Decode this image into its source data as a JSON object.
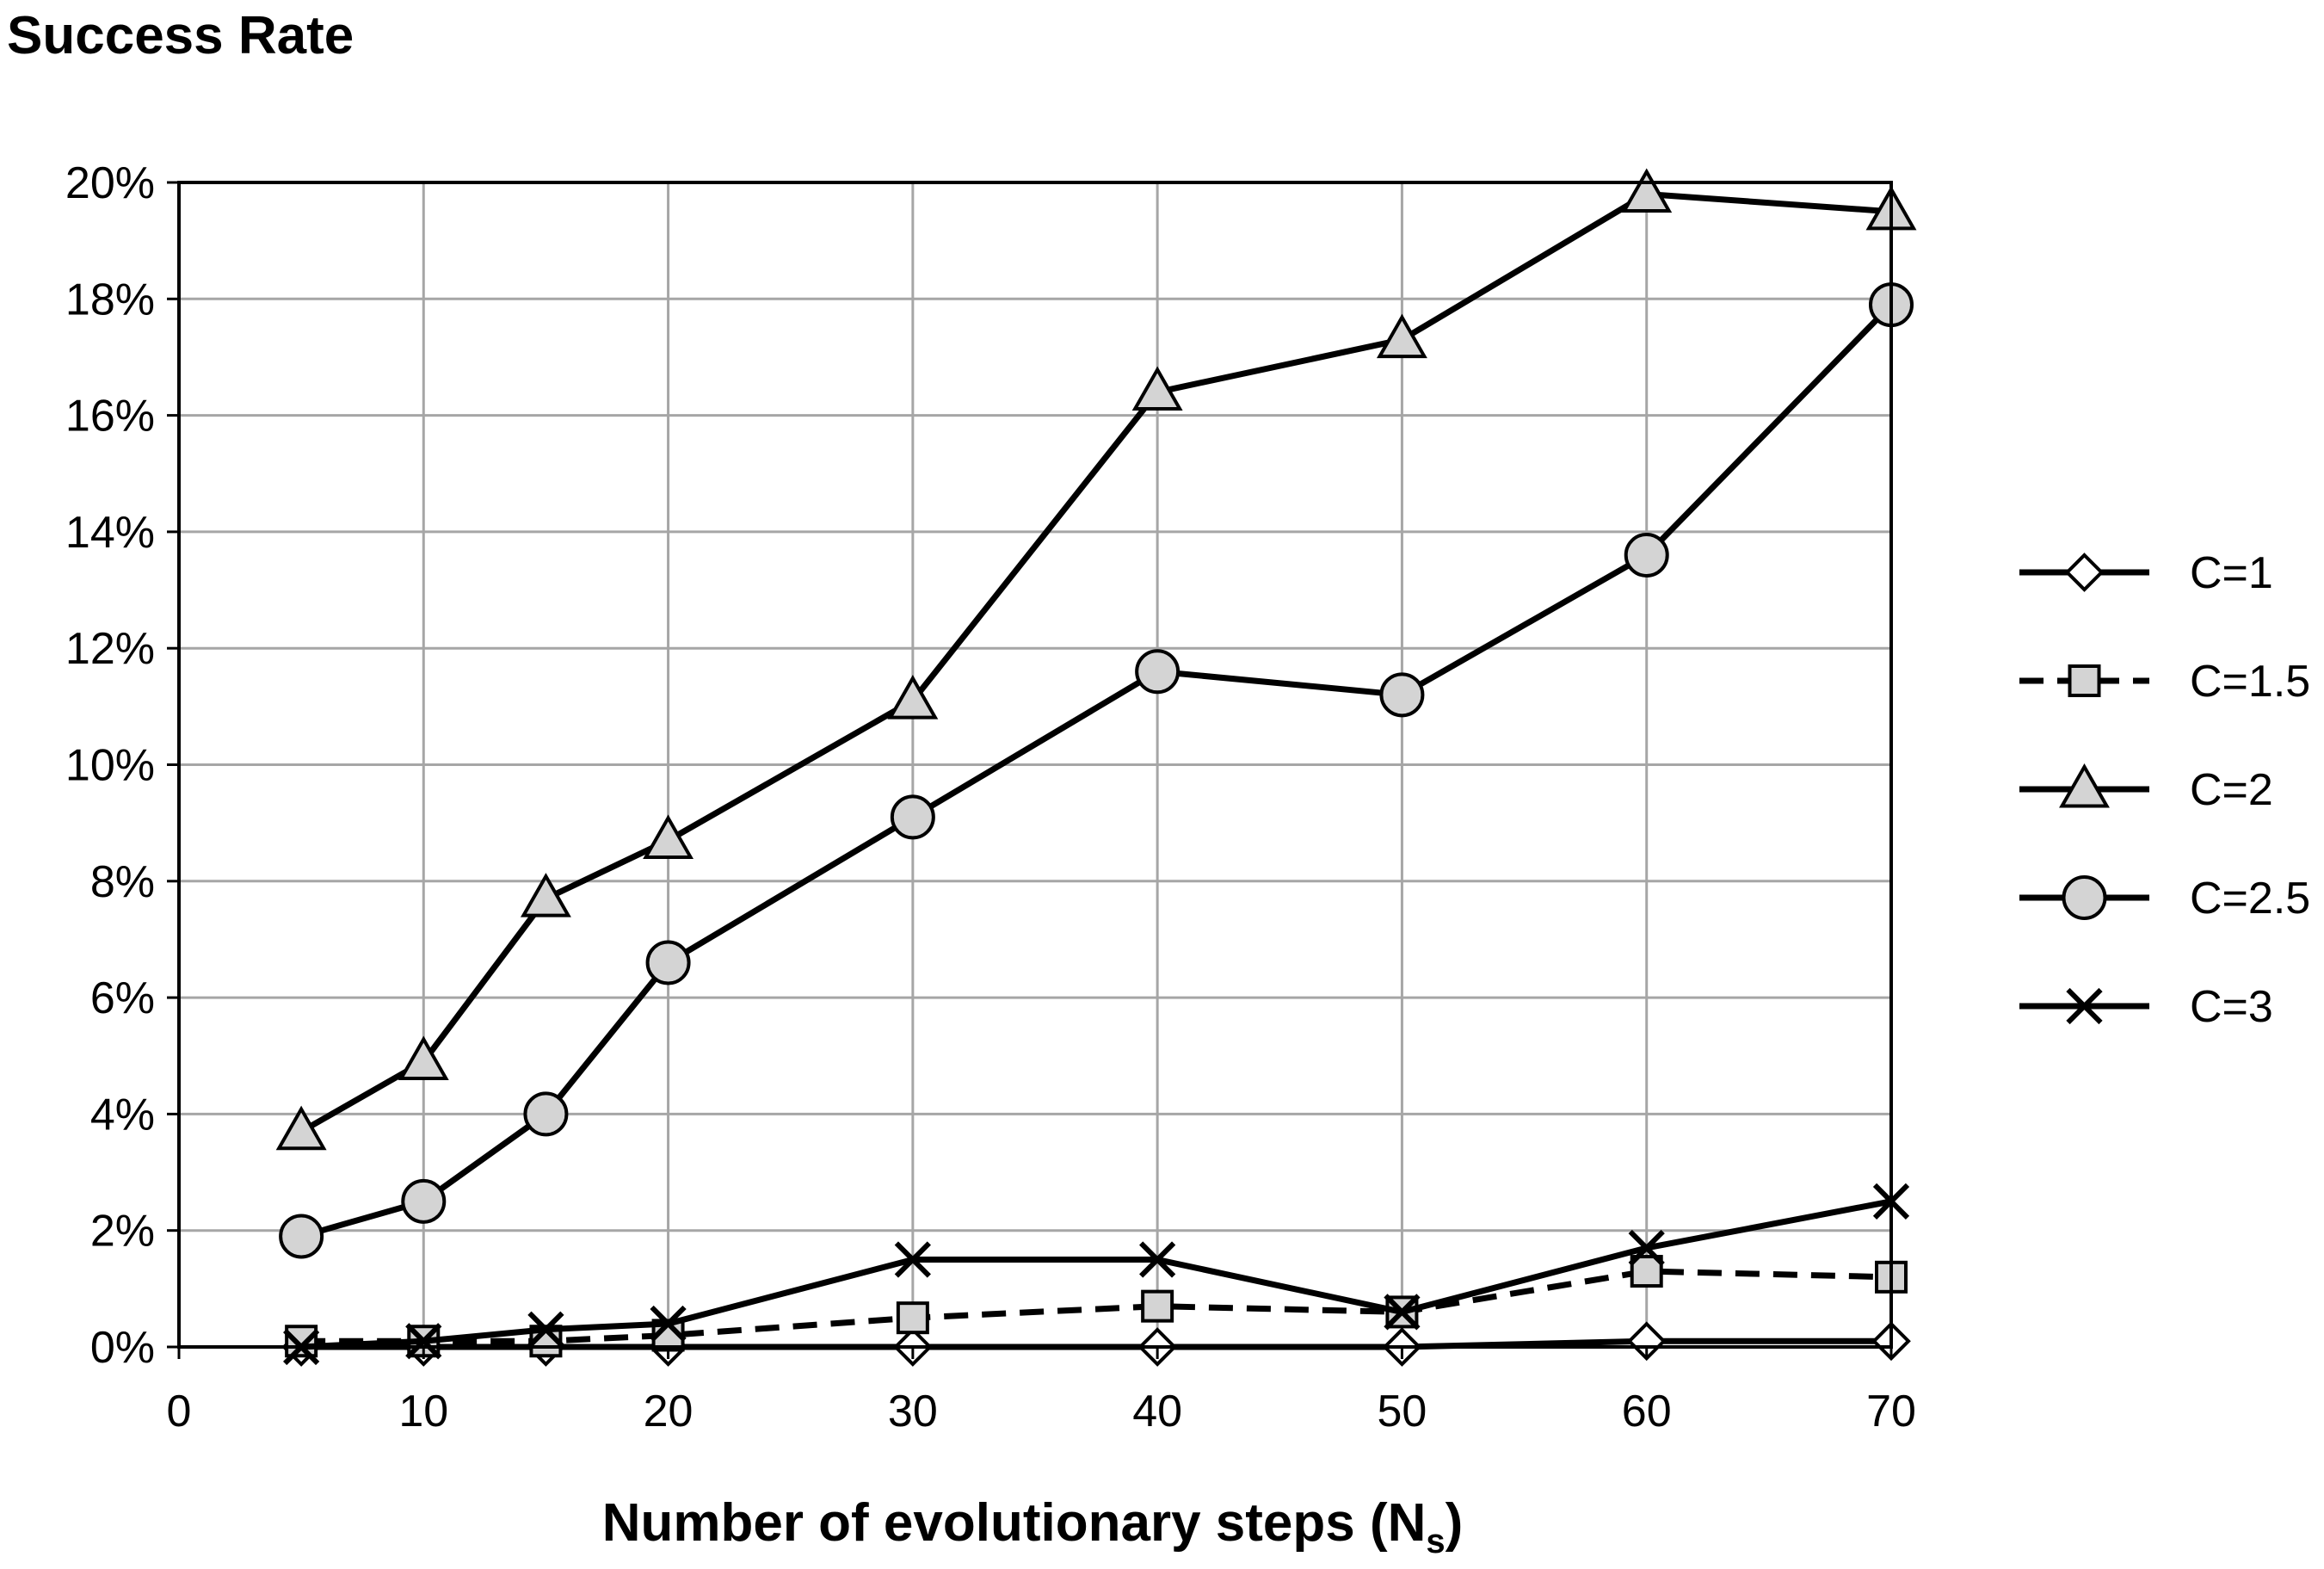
{
  "chart_data": {
    "type": "line",
    "title": "",
    "ylabel": "Success Rate",
    "xlabel_main": "Number of evolutionary steps (N",
    "xlabel_sub": "s",
    "xlabel_end": ")",
    "xlim": [
      0,
      70
    ],
    "ylim": [
      0,
      20
    ],
    "x_ticks": [
      0,
      10,
      20,
      30,
      40,
      50,
      60,
      70
    ],
    "y_ticks": [
      0,
      2,
      4,
      6,
      8,
      10,
      12,
      14,
      16,
      18,
      20
    ],
    "y_tick_labels": [
      "0%",
      "2%",
      "4%",
      "6%",
      "8%",
      "10%",
      "12%",
      "14%",
      "16%",
      "18%",
      "20%"
    ],
    "grid": true,
    "legend_position": "right",
    "x": [
      5,
      10,
      15,
      20,
      30,
      40,
      50,
      60,
      70
    ],
    "series": [
      {
        "name": "C=1",
        "marker": "diamond",
        "dash": false,
        "values": [
          0,
          0,
          0,
          0,
          0,
          0,
          0,
          0.1,
          0.1
        ]
      },
      {
        "name": "C=1.5",
        "marker": "square",
        "dash": true,
        "values": [
          0.1,
          0.1,
          0.1,
          0.2,
          0.5,
          0.7,
          0.6,
          1.3,
          1.2
        ]
      },
      {
        "name": "C=2",
        "marker": "triangle",
        "dash": false,
        "values": [
          3.7,
          4.9,
          7.7,
          8.7,
          11.1,
          16.4,
          17.3,
          19.8,
          19.5
        ]
      },
      {
        "name": "C=2.5",
        "marker": "circle",
        "dash": false,
        "values": [
          1.9,
          2.5,
          4.0,
          6.6,
          9.1,
          11.6,
          11.2,
          13.6,
          17.9
        ]
      },
      {
        "name": "C=3",
        "marker": "x",
        "dash": false,
        "values": [
          0,
          0.1,
          0.3,
          0.4,
          1.5,
          1.5,
          0.6,
          1.7,
          2.5
        ]
      }
    ],
    "colors": {
      "line": "#000000",
      "marker_fill": "#d4d4d4",
      "grid": "#a6a6a6"
    }
  }
}
